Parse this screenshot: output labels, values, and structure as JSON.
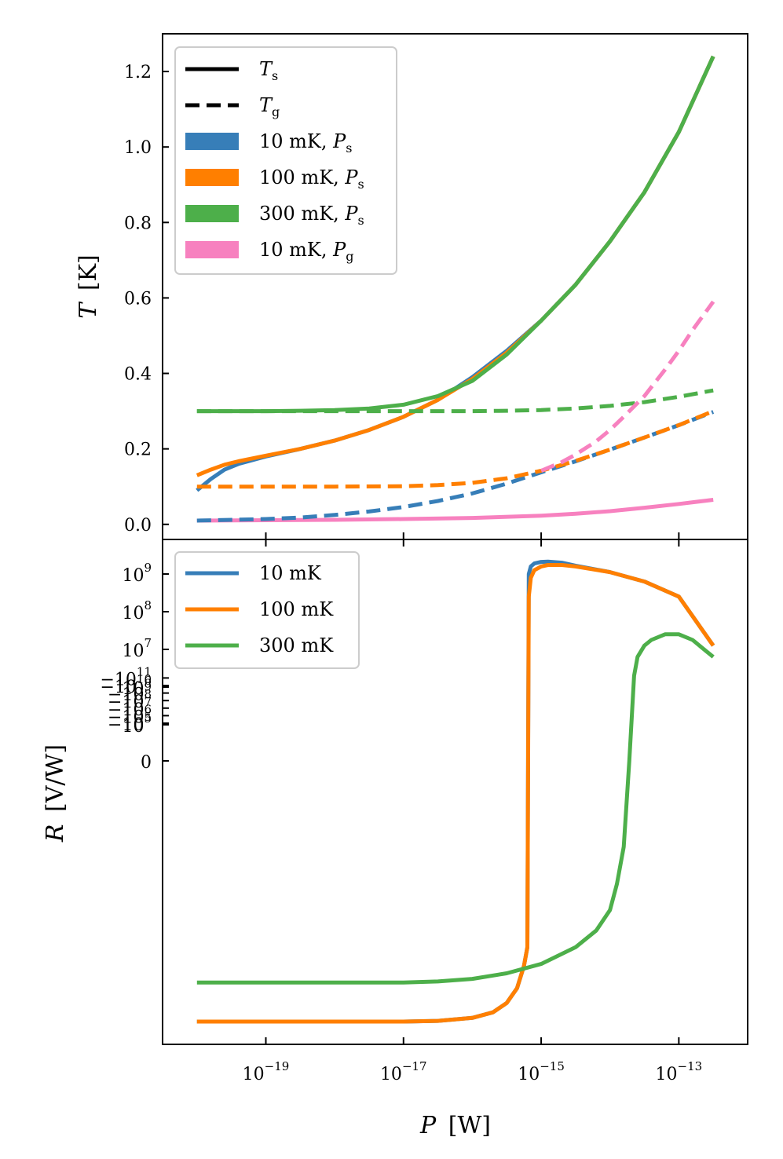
{
  "chart_data": [
    {
      "type": "line",
      "panel": "top",
      "ylabel": {
        "sym": "T",
        "unit": "[K]"
      },
      "xscale": "log",
      "xlim": [
        3.16e-21,
        1e-12
      ],
      "ylim": [
        -0.04,
        1.3
      ],
      "yticks": [
        0.0,
        0.2,
        0.4,
        0.6,
        0.8,
        1.0,
        1.2
      ],
      "ytick_labels": [
        "0.0",
        "0.2",
        "0.4",
        "0.6",
        "0.8",
        "1.0",
        "1.2"
      ],
      "legend": {
        "position": "top-left",
        "entries": [
          {
            "kind": "line",
            "style": "solid",
            "color": "#000000",
            "sym": "T",
            "sub": "s"
          },
          {
            "kind": "line",
            "style": "dashed",
            "color": "#000000",
            "sym": "T",
            "sub": "g"
          },
          {
            "kind": "patch",
            "color": "#377eb8",
            "text": "10 mK, ",
            "sym": "P",
            "sub": "s"
          },
          {
            "kind": "patch",
            "color": "#ff7f00",
            "text": "100 mK, ",
            "sym": "P",
            "sub": "s"
          },
          {
            "kind": "patch",
            "color": "#4daf4a",
            "text": "300 mK, ",
            "sym": "P",
            "sub": "s"
          },
          {
            "kind": "patch",
            "color": "#f781bf",
            "text": "10 mK, ",
            "sym": "P",
            "sub": "g"
          }
        ]
      },
      "series": [
        {
          "name": "10 mK, Ts",
          "color": "#377eb8",
          "style": "solid",
          "x": [
            -20,
            -19.8,
            -19.6,
            -19.4,
            -19,
            -18.5,
            -18,
            -17.5,
            -17,
            -16.5,
            -16,
            -15.5,
            -15,
            -14.5,
            -14,
            -13.5,
            -13,
            -12.5
          ],
          "y": [
            0.09,
            0.12,
            0.145,
            0.16,
            0.18,
            0.2,
            0.222,
            0.25,
            0.285,
            0.33,
            0.39,
            0.46,
            0.54,
            0.635,
            0.75,
            0.88,
            1.04,
            1.24
          ]
        },
        {
          "name": "100 mK, Ts",
          "color": "#ff7f00",
          "style": "solid",
          "x": [
            -20,
            -19.8,
            -19.6,
            -19.4,
            -19,
            -18.5,
            -18,
            -17.5,
            -17,
            -16.5,
            -16,
            -15.5,
            -15,
            -14.5,
            -14,
            -13.5,
            -13,
            -12.5
          ],
          "y": [
            0.13,
            0.145,
            0.158,
            0.167,
            0.182,
            0.2,
            0.222,
            0.25,
            0.285,
            0.33,
            0.385,
            0.455,
            0.54,
            0.635,
            0.75,
            0.88,
            1.04,
            1.24
          ]
        },
        {
          "name": "300 mK, Ts",
          "color": "#4daf4a",
          "style": "solid",
          "x": [
            -20,
            -19,
            -18.5,
            -18,
            -17.5,
            -17,
            -16.5,
            -16,
            -15.5,
            -15,
            -14.5,
            -14,
            -13.5,
            -13,
            -12.5
          ],
          "y": [
            0.3,
            0.3,
            0.301,
            0.303,
            0.307,
            0.317,
            0.34,
            0.38,
            0.45,
            0.54,
            0.635,
            0.75,
            0.88,
            1.04,
            1.24
          ]
        },
        {
          "name": "10 mK, Pg (Ts)",
          "color": "#f781bf",
          "style": "solid",
          "x": [
            -20,
            -19,
            -18,
            -17,
            -16,
            -15,
            -14.5,
            -14,
            -13.5,
            -13,
            -12.5
          ],
          "y": [
            0.01,
            0.011,
            0.012,
            0.014,
            0.017,
            0.023,
            0.028,
            0.035,
            0.044,
            0.054,
            0.065
          ]
        },
        {
          "name": "10 mK, Tg",
          "color": "#377eb8",
          "style": "dashed",
          "x": [
            -20,
            -19,
            -18.5,
            -18,
            -17.5,
            -17,
            -16.5,
            -16,
            -15.5,
            -15,
            -14.5,
            -14,
            -13.5,
            -13,
            -12.5
          ],
          "y": [
            0.01,
            0.014,
            0.018,
            0.025,
            0.034,
            0.046,
            0.062,
            0.082,
            0.108,
            0.138,
            0.167,
            0.198,
            0.23,
            0.263,
            0.298
          ]
        },
        {
          "name": "100 mK, Tg",
          "color": "#ff7f00",
          "style": "dashed",
          "x": [
            -20,
            -19,
            -18,
            -17,
            -16.5,
            -16,
            -15.5,
            -15,
            -14.5,
            -14,
            -13.5,
            -13,
            -12.5
          ],
          "y": [
            0.1,
            0.1,
            0.1,
            0.101,
            0.104,
            0.11,
            0.122,
            0.142,
            0.168,
            0.198,
            0.23,
            0.263,
            0.3
          ]
        },
        {
          "name": "300 mK, Tg",
          "color": "#4daf4a",
          "style": "dashed",
          "x": [
            -20,
            -18,
            -17,
            -16,
            -15.5,
            -15,
            -14.5,
            -14,
            -13.5,
            -13,
            -12.5
          ],
          "y": [
            0.3,
            0.3,
            0.3,
            0.3,
            0.301,
            0.303,
            0.307,
            0.314,
            0.324,
            0.338,
            0.355
          ]
        },
        {
          "name": "10 mK, Pg (Tg)",
          "color": "#f781bf",
          "style": "dashed",
          "x": [
            -15,
            -14.7,
            -14.5,
            -14.2,
            -14,
            -13.8,
            -13.5,
            -13.2,
            -13,
            -12.8,
            -12.5
          ],
          "y": [
            0.142,
            0.165,
            0.185,
            0.22,
            0.25,
            0.285,
            0.34,
            0.41,
            0.46,
            0.515,
            0.59
          ]
        }
      ]
    },
    {
      "type": "line",
      "panel": "bottom",
      "ylabel": {
        "sym": "R",
        "unit": "[V/W]"
      },
      "xlabel": {
        "sym": "P",
        "unit": "[W]"
      },
      "xscale": "log",
      "yscale": "symlog",
      "xlim": [
        3.16e-21,
        1e-12
      ],
      "ylim": [
        -200000000000.0,
        6000000000.0
      ],
      "xticks": [
        {
          "base": "10",
          "exp": "−19",
          "value": 1e-19
        },
        {
          "base": "10",
          "exp": "−17",
          "value": 1e-17
        },
        {
          "base": "10",
          "exp": "−15",
          "value": 1e-15
        },
        {
          "base": "10",
          "exp": "−13",
          "value": 1e-13
        }
      ],
      "yticks": [
        {
          "base": "10",
          "exp": "9",
          "value": 1000000000.0
        },
        {
          "base": "10",
          "exp": "8",
          "value": 100000000.0
        },
        {
          "base": "10",
          "exp": "7",
          "value": 10000000.0
        },
        {
          "base": "10",
          "exp": "6",
          "value": 1000000.0
        },
        {
          "base": "10",
          "exp": "5",
          "value": 100000.0
        },
        {
          "base": "0",
          "exp": "",
          "value": 0
        },
        {
          "base": "−10",
          "exp": "5",
          "value": -100000.0
        },
        {
          "base": "−10",
          "exp": "6",
          "value": -1000000.0
        },
        {
          "base": "−10",
          "exp": "7",
          "value": -10000000.0
        },
        {
          "base": "−10",
          "exp": "8",
          "value": -100000000.0
        },
        {
          "base": "−10",
          "exp": "9",
          "value": -1000000000.0
        },
        {
          "base": "−10",
          "exp": "10",
          "value": -10000000000.0
        },
        {
          "base": "−10",
          "exp": "11",
          "value": -100000000000.0
        }
      ],
      "legend": {
        "position": "top-left",
        "entries": [
          {
            "color": "#377eb8",
            "label": "10 mK"
          },
          {
            "color": "#ff7f00",
            "label": "100 mK"
          },
          {
            "color": "#4daf4a",
            "label": "300 mK"
          }
        ]
      },
      "series": [
        {
          "name": "10 mK",
          "color": "#377eb8",
          "x": [
            -20,
            -19,
            -18,
            -17,
            -16.5,
            -16,
            -15.7,
            -15.5,
            -15.35,
            -15.25,
            -15.2,
            -15.18,
            -15.15,
            -15.1,
            -15.0,
            -14.9,
            -14.7,
            -14.5,
            -14,
            -13.5,
            -13,
            -12.5
          ],
          "y": [
            -11,
            -11,
            -11,
            -11,
            -10.98,
            -10.9,
            -10.75,
            -10.5,
            -10.1,
            -9.5,
            -9.0,
            9.0,
            9.2,
            9.28,
            9.32,
            9.33,
            9.3,
            9.22,
            9.05,
            8.8,
            8.4,
            7.1
          ]
        },
        {
          "name": "100 mK",
          "color": "#ff7f00",
          "x": [
            -20,
            -19,
            -18,
            -17,
            -16.5,
            -16,
            -15.7,
            -15.5,
            -15.35,
            -15.25,
            -15.2,
            -15.18,
            -15.15,
            -15.1,
            -15.0,
            -14.9,
            -14.7,
            -14.5,
            -14,
            -13.5,
            -13,
            -12.5
          ],
          "y": [
            -11,
            -11,
            -11,
            -11,
            -10.98,
            -10.9,
            -10.75,
            -10.5,
            -10.1,
            -9.5,
            -9.0,
            8.4,
            8.9,
            9.1,
            9.2,
            9.24,
            9.24,
            9.2,
            9.05,
            8.8,
            8.4,
            7.1
          ]
        },
        {
          "name": "300 mK",
          "color": "#4daf4a",
          "x": [
            -20,
            -19,
            -18,
            -17,
            -16.5,
            -16,
            -15.5,
            -15,
            -14.5,
            -14.2,
            -14.0,
            -13.9,
            -13.8,
            -13.72,
            -13.65,
            -13.6,
            -13.5,
            -13.4,
            -13.2,
            -13,
            -12.8,
            -12.6,
            -12.5
          ],
          "y": [
            -9.95,
            -9.95,
            -9.95,
            -9.95,
            -9.92,
            -9.85,
            -9.7,
            -9.45,
            -9.0,
            -8.55,
            -8.0,
            -7.3,
            -6.3,
            0,
            6.3,
            6.8,
            7.1,
            7.25,
            7.4,
            7.4,
            7.25,
            6.95,
            6.8
          ]
        }
      ]
    }
  ]
}
